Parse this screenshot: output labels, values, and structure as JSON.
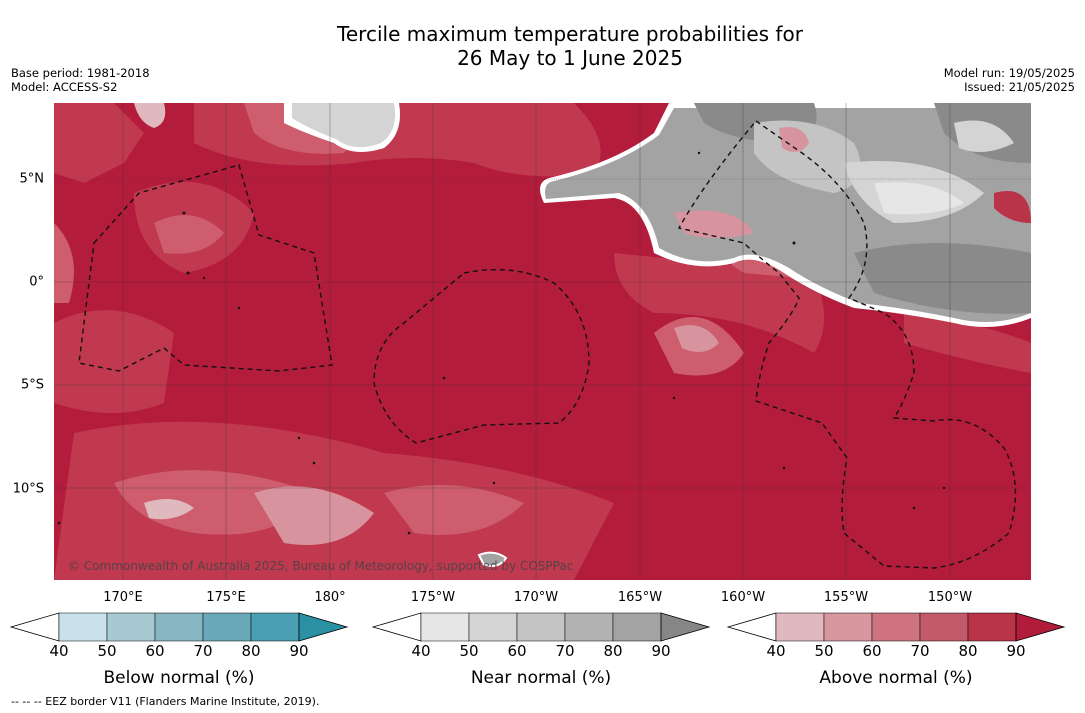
{
  "title_line1": "Tercile maximum temperature probabilities for",
  "title_line2": "26 May to 1 June 2025",
  "base_period": "Base period: 1981-2018",
  "model": "Model: ACCESS-S2",
  "model_run": "Model run: 19/05/2025",
  "issued": "Issued: 21/05/2025",
  "latitude_labels": [
    "5°N",
    "0°",
    "5°S",
    "10°S"
  ],
  "longitude_labels": [
    "170°E",
    "175°E",
    "180°",
    "175°W",
    "170°W",
    "165°W",
    "160°W",
    "155°W",
    "150°W"
  ],
  "copyright": "© Commonwealth of Australia 2025, Bureau of Meteorology, supported by COSPPac",
  "footnote": "-- -- -- EEZ border V11 (Flanders Marine Institute, 2019).",
  "colorbars": [
    {
      "title": "Below normal (%)",
      "ticks": [
        "40",
        "50",
        "60",
        "70",
        "80",
        "90"
      ],
      "colors": [
        "#ffffff",
        "#c9e2ea",
        "#a7c9d1",
        "#88b6c2",
        "#69a8b8",
        "#4aa0b2",
        "#2a91a5"
      ]
    },
    {
      "title": "Near normal (%)",
      "ticks": [
        "40",
        "50",
        "60",
        "70",
        "80",
        "90"
      ],
      "colors": [
        "#ffffff",
        "#e6e6e6",
        "#d4d4d4",
        "#c4c4c4",
        "#b3b3b3",
        "#a3a3a3",
        "#868686"
      ]
    },
    {
      "title": "Above normal (%)",
      "ticks": [
        "40",
        "50",
        "60",
        "70",
        "80",
        "90"
      ],
      "colors": [
        "#ffffff",
        "#e0b9bf",
        "#d8969f",
        "#ce737f",
        "#c35a69",
        "#b93448",
        "#b01c3a"
      ]
    }
  ]
}
